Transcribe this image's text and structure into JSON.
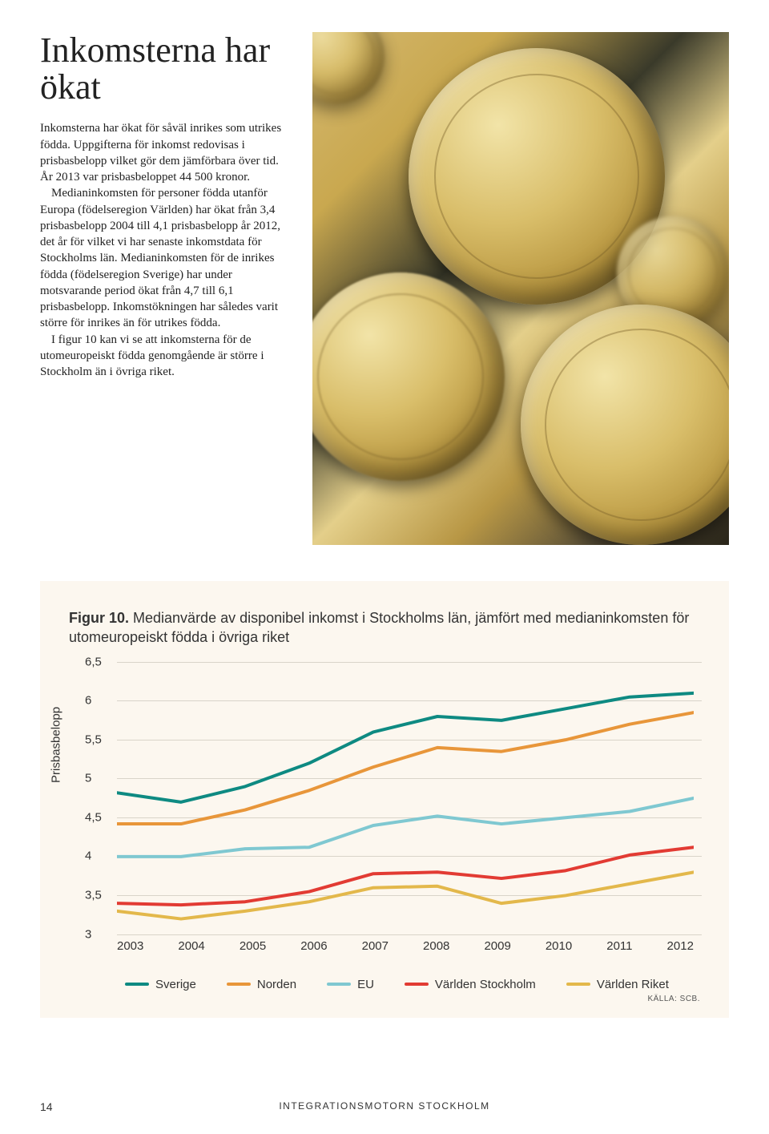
{
  "title": "Inkomsterna har ökat",
  "body": {
    "p1": "Inkomsterna har ökat för såväl inrikes som utrikes födda. Uppgifterna för inkomst redovisas i prisbasbelopp vilket gör dem jämförbara över tid. År 2013 var prisbasbeloppet 44 500 kronor.",
    "p2": "Medianinkomsten för personer födda utanför Europa (födelseregion Världen) har ökat från 3,4 prisbas­belopp 2004 till 4,1 prisbasbelopp år 2012, det år för vilket vi har senaste inkomstdata för Stockholms län. Medianinkomsten för de inrikes föd­da (födelseregion Sverige) har under motsvarande period ökat från 4,7 till 6,1 prisbasbelopp. Inkomstökningen har således varit större för inrikes än för utrikes födda.",
    "p3": "I figur 10 kan vi se att inkomsterna för de utomeuropeiskt födda genom­gående är större i Stockholm än i övriga riket."
  },
  "chart": {
    "caption_label": "Figur 10.",
    "caption_text": " Medianvärde av disponibel inkomst i Stockholms län, jämfört med medianinkomsten för utomeuropeiskt födda i övriga riket",
    "ylabel": "Prisbasbelopp",
    "ylim": [
      3,
      6.5
    ],
    "yticks": [
      "6,5",
      "6",
      "5,5",
      "5",
      "4,5",
      "4",
      "3,5",
      "3"
    ],
    "ytick_values": [
      6.5,
      6,
      5.5,
      5,
      4.5,
      4,
      3.5,
      3
    ],
    "xticks": [
      "2003",
      "2004",
      "2005",
      "2006",
      "2007",
      "2008",
      "2009",
      "2010",
      "2011",
      "2012"
    ],
    "series": [
      {
        "name": "Sverige",
        "color": "#0e8a82",
        "values": [
          4.82,
          4.7,
          4.9,
          5.2,
          5.6,
          5.8,
          5.75,
          5.9,
          6.05,
          6.1
        ]
      },
      {
        "name": "Norden",
        "color": "#e8963a",
        "values": [
          4.42,
          4.42,
          4.6,
          4.85,
          5.15,
          5.4,
          5.35,
          5.5,
          5.7,
          5.85
        ]
      },
      {
        "name": "EU",
        "color": "#7fc8d1",
        "values": [
          4.0,
          4.0,
          4.1,
          4.12,
          4.4,
          4.52,
          4.42,
          4.5,
          4.58,
          4.75
        ]
      },
      {
        "name": "Världen Stockholm",
        "color": "#e23b33",
        "values": [
          3.4,
          3.38,
          3.42,
          3.55,
          3.78,
          3.8,
          3.72,
          3.82,
          4.02,
          4.12
        ]
      },
      {
        "name": "Världen Riket",
        "color": "#e3b84b",
        "values": [
          3.3,
          3.2,
          3.3,
          3.42,
          3.6,
          3.62,
          3.4,
          3.5,
          3.65,
          3.8
        ]
      }
    ],
    "line_width": 4,
    "background": "#fcf7ef",
    "grid_color": "#d9d4c9",
    "source": "KÄLLA: SCB."
  },
  "footer": {
    "page": "14",
    "title": "INTEGRATIONSMOTORN STOCKHOLM"
  }
}
